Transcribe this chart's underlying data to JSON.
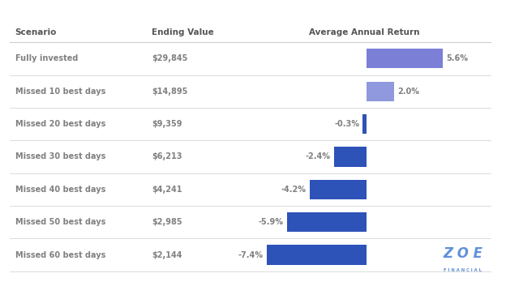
{
  "scenarios": [
    "Fully invested",
    "Missed 10 best days",
    "Missed 20 best days",
    "Missed 30 best days",
    "Missed 40 best days",
    "Missed 50 best days",
    "Missed 60 best days"
  ],
  "ending_values": [
    "$29,845",
    "$14,895",
    "$9,359",
    "$6,213",
    "$4,241",
    "$2,985",
    "$2,144"
  ],
  "returns": [
    5.6,
    2.0,
    -0.3,
    -2.4,
    -4.2,
    -5.9,
    -7.4
  ],
  "return_labels": [
    "5.6%",
    "2.0%",
    "-0.3%",
    "-2.4%",
    "-4.2%",
    "-5.9%",
    "-7.4%"
  ],
  "bar_colors": [
    "#7b7fd6",
    "#9099dd",
    "#2d52b8",
    "#2d52b8",
    "#2d52b8",
    "#2d52b8",
    "#2d52b8"
  ],
  "header_scenario": "Scenario",
  "header_ending": "Ending Value",
  "header_return": "Average Annual Return",
  "bg_color": "#ffffff",
  "text_color": "#808080",
  "header_color": "#555555",
  "line_color": "#cccccc",
  "zoe_color": "#6090d8"
}
